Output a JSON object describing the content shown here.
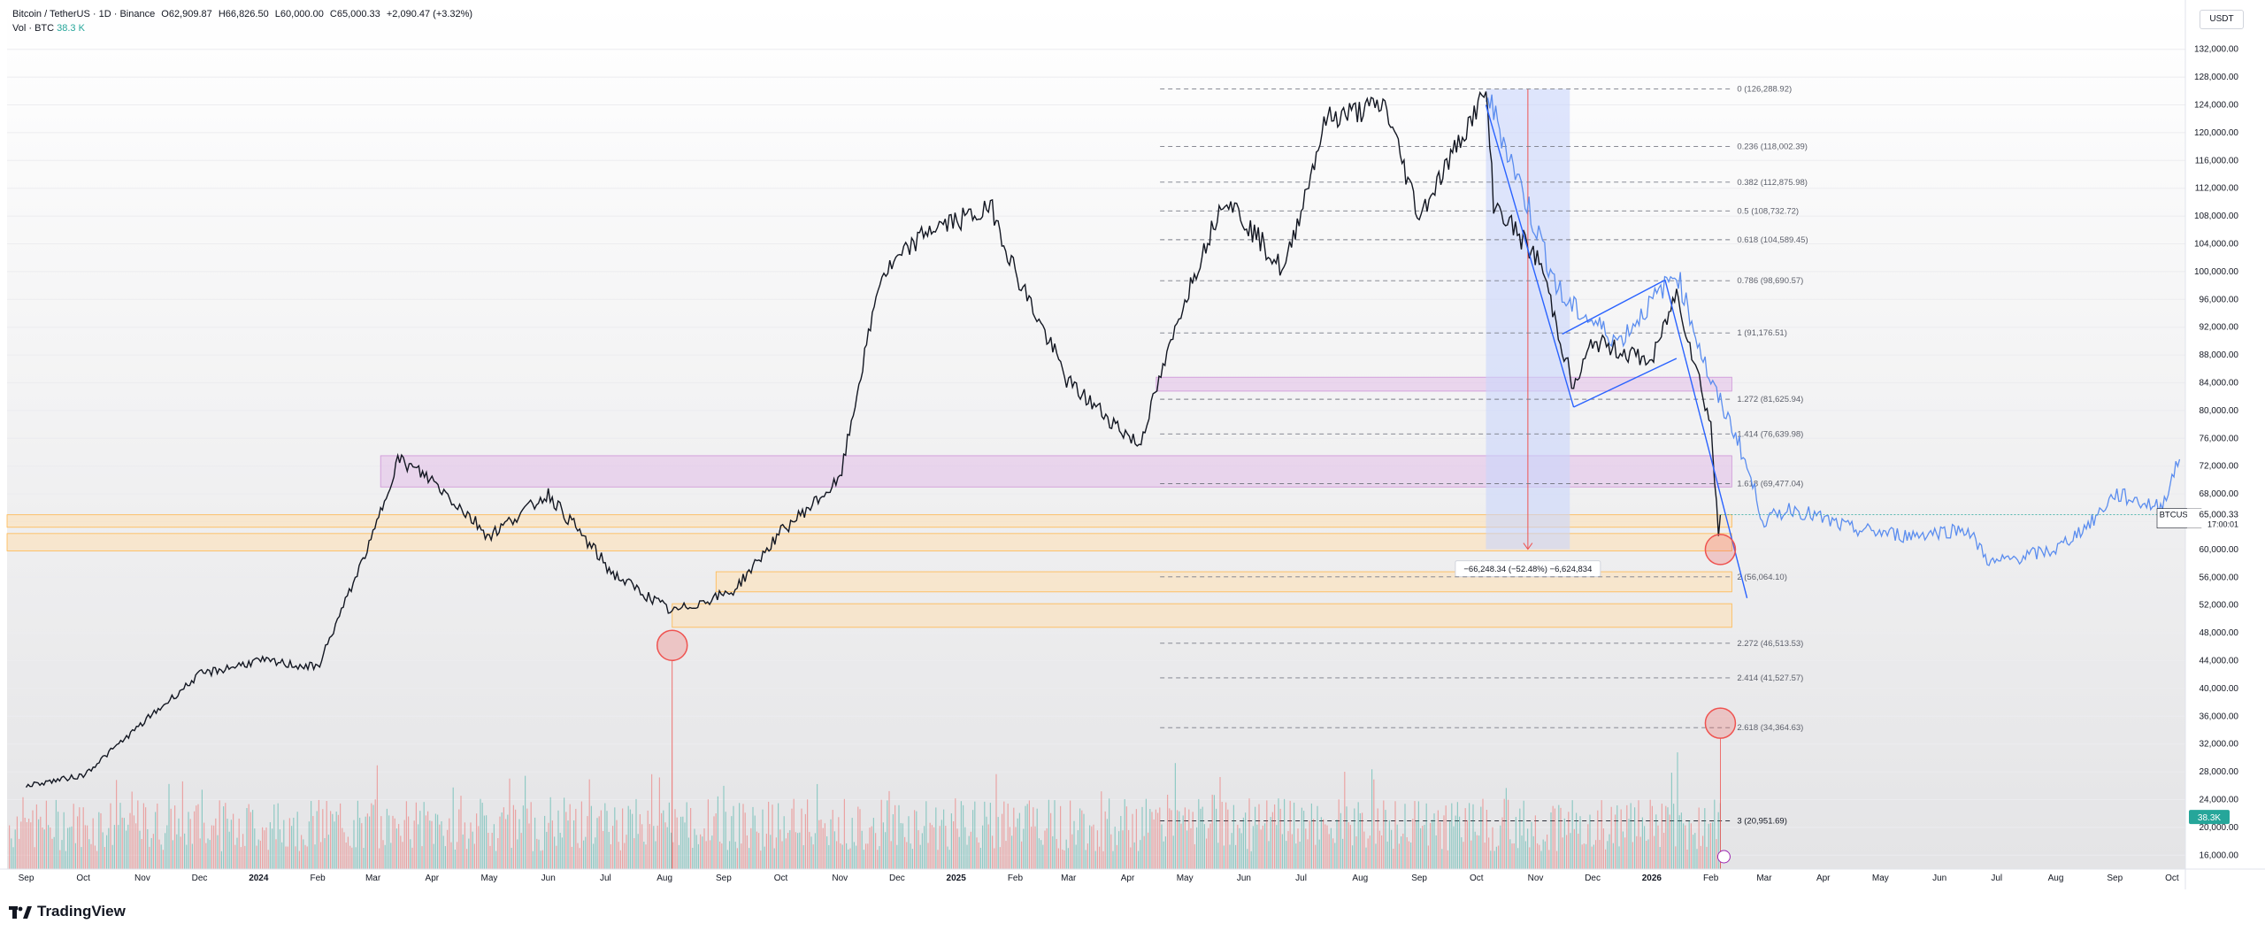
{
  "header": {
    "symbol": "Bitcoin / TetherUS · 1D · Binance",
    "open": "O62,909.87",
    "high": "H66,826.50",
    "low": "L60,000.00",
    "close": "C65,000.33",
    "change": "+2,090.47 (+3.32%)",
    "vol_label": "Vol · BTC",
    "vol_value": "38.3 K"
  },
  "currency_button": "USDT",
  "brand": "TradingView",
  "price_label": {
    "symbol": "BTCUSDT",
    "price": "65,000.33",
    "countdown": "17:00:01"
  },
  "volume_label": "38.3K",
  "measure_label": "−66,248.34 (−52.48%) −6,624,834",
  "colors": {
    "up": "#26a69a",
    "down": "#ef5350",
    "candle": "#131722",
    "projection": "#5b8def",
    "fib": "#787b86",
    "zone_purple": "#e1bee7",
    "zone_orange": "#ffe0b2",
    "measure": "#c9d5fb"
  },
  "chart_data": {
    "type": "line",
    "title": "Bitcoin / TetherUS · 1D · Binance",
    "xlabel": "",
    "ylabel": "",
    "ylim": [
      14000,
      134000
    ],
    "x_ticks": [
      "Sep",
      "Oct",
      "Nov",
      "Dec",
      "2024",
      "Feb",
      "Mar",
      "Apr",
      "May",
      "Jun",
      "Jul",
      "Aug",
      "Sep",
      "Oct",
      "Nov",
      "Dec",
      "2025",
      "Feb",
      "Mar",
      "Apr",
      "May",
      "Jun",
      "Jul",
      "Aug",
      "Sep",
      "Oct",
      "Nov",
      "Dec",
      "2026",
      "Feb",
      "Mar",
      "Apr",
      "May",
      "Jun",
      "Jul",
      "Aug",
      "Sep",
      "Oct"
    ],
    "y_ticks": [
      "132,000.00",
      "128,000.00",
      "124,000.00",
      "120,000.00",
      "116,000.00",
      "112,000.00",
      "108,000.00",
      "104,000.00",
      "100,000.00",
      "96,000.00",
      "92,000.00",
      "88,000.00",
      "84,000.00",
      "80,000.00",
      "76,000.00",
      "72,000.00",
      "68,000.00",
      "64,000.00",
      "60,000.00",
      "56,000.00",
      "52,000.00",
      "48,000.00",
      "44,000.00",
      "40,000.00",
      "36,000.00",
      "32,000.00",
      "28,000.00",
      "24,000.00",
      "20,000.00",
      "16,000.00"
    ],
    "grid": true,
    "series": [
      {
        "x": [
          "2023-09-01",
          "2023-10-01",
          "2023-11-01",
          "2023-12-01",
          "2024-01-01",
          "2024-02-01",
          "2024-03-01",
          "2024-03-14",
          "2024-04-01",
          "2024-05-01",
          "2024-06-01",
          "2024-07-05",
          "2024-08-05",
          "2024-09-06",
          "2024-10-01",
          "2024-11-01",
          "2024-11-22",
          "2024-12-17",
          "2025-01-20",
          "2025-02-01",
          "2025-03-01",
          "2025-04-07",
          "2025-05-01",
          "2025-05-22",
          "2025-06-22",
          "2025-07-14",
          "2025-08-14",
          "2025-09-01",
          "2025-10-06",
          "2025-10-10",
          "2025-11-04",
          "2025-11-21",
          "2025-12-01",
          "2026-01-01",
          "2026-01-14",
          "2026-02-01",
          "2026-02-05",
          "2026-02-06"
        ],
        "values": [
          26000,
          27500,
          35000,
          42000,
          44000,
          43000,
          62000,
          73000,
          70000,
          62000,
          68000,
          56500,
          51000,
          54000,
          62500,
          70000,
          99000,
          106000,
          109000,
          100000,
          84000,
          75000,
          96000,
          111000,
          100000,
          122000,
          124000,
          108000,
          126000,
          110000,
          101000,
          83000,
          90000,
          87000,
          97000,
          78000,
          62000,
          65000
        ]
      },
      {
        "x": [
          "2025-10-06",
          "2025-11-15",
          "2025-12-15",
          "2026-01-14",
          "2026-02-01",
          "2026-02-15",
          "2026-03-01",
          "2026-03-15",
          "2026-04-15",
          "2026-05-15",
          "2026-06-15",
          "2026-06-28",
          "2026-07-15",
          "2026-08-01",
          "2026-08-20",
          "2026-09-01",
          "2026-09-25",
          "2026-10-05"
        ],
        "values": [
          126000,
          96000,
          90000,
          100000,
          84000,
          76000,
          64000,
          66000,
          63000,
          62000,
          63000,
          58000,
          59000,
          60000,
          64000,
          68000,
          66000,
          73000
        ]
      }
    ],
    "fibonacci": [
      {
        "level": "0",
        "price": "126,288.92"
      },
      {
        "level": "0.236",
        "price": "118,002.39"
      },
      {
        "level": "0.382",
        "price": "112,875.98"
      },
      {
        "level": "0.5",
        "price": "108,732.72"
      },
      {
        "level": "0.618",
        "price": "104,589.45"
      },
      {
        "level": "0.786",
        "price": "98,690.57"
      },
      {
        "level": "1",
        "price": "91,176.51"
      },
      {
        "level": "1.272",
        "price": "81,625.94"
      },
      {
        "level": "1.414",
        "price": "76,639.98"
      },
      {
        "level": "1.618",
        "price": "69,477.04"
      },
      {
        "level": "2",
        "price": "56,064.10"
      },
      {
        "level": "2.272",
        "price": "46,513.53"
      },
      {
        "level": "2.414",
        "price": "41,527.57"
      },
      {
        "level": "2.618",
        "price": "34,364.63"
      },
      {
        "level": "3",
        "price": "20,951.69"
      }
    ]
  }
}
